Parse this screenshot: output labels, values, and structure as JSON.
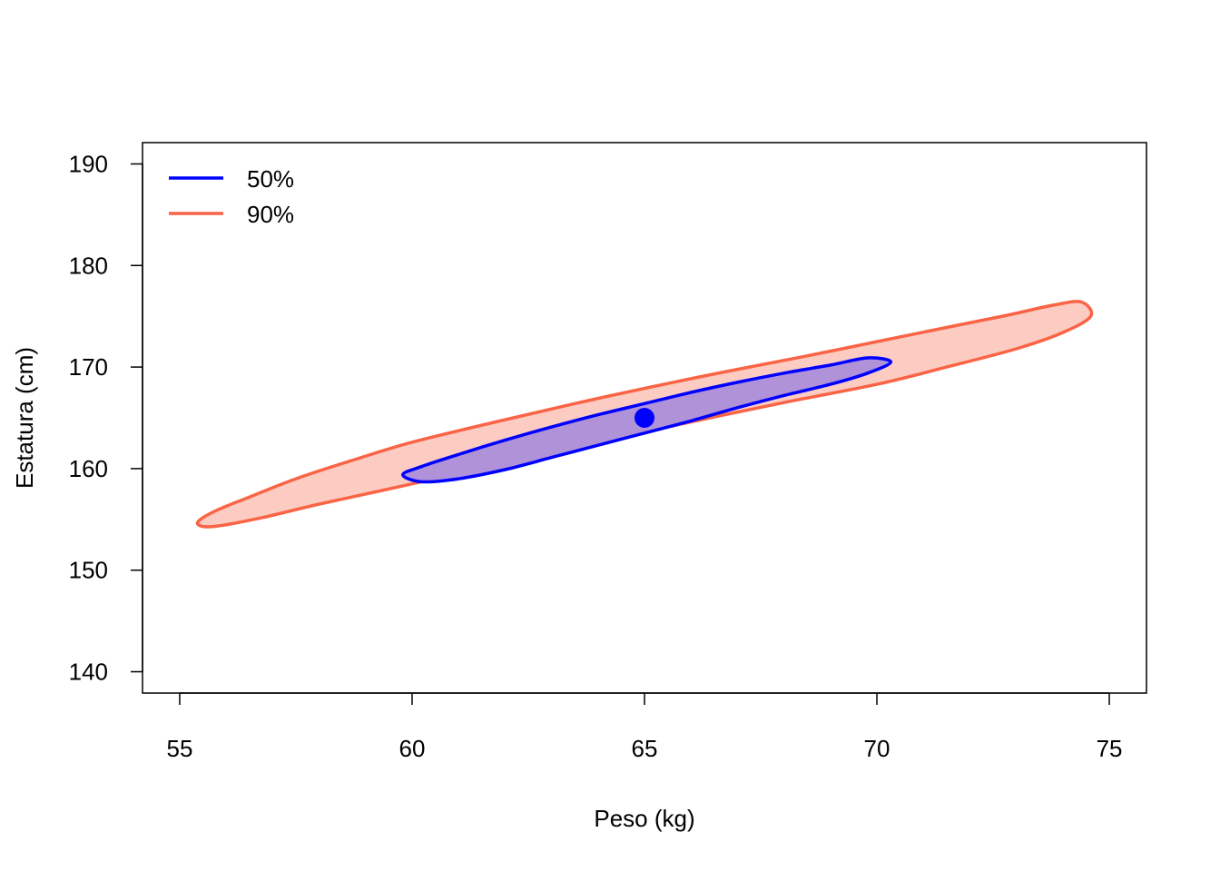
{
  "chart_data": {
    "type": "scatter",
    "title": "",
    "xlabel": "Peso (kg)",
    "ylabel": "Estatura (cm)",
    "xlim": [
      54.2,
      75.8
    ],
    "ylim": [
      137.9,
      192.1
    ],
    "xticks": [
      55,
      60,
      65,
      70,
      75
    ],
    "yticks": [
      140,
      150,
      160,
      170,
      180,
      190
    ],
    "grid": false,
    "legend_position": "top-left",
    "center_point": {
      "x": 65,
      "y": 165,
      "color": "#0000FF"
    },
    "regions": [
      {
        "name": "90%",
        "stroke": "#FA6446",
        "fill": "#FCCCC3",
        "points": [
          [
            55.4,
            154.8
          ],
          [
            55.8,
            155.9
          ],
          [
            56.5,
            157.2
          ],
          [
            57.5,
            159.0
          ],
          [
            58.7,
            160.8
          ],
          [
            60.0,
            162.6
          ],
          [
            61.8,
            164.6
          ],
          [
            63.5,
            166.4
          ],
          [
            65.0,
            167.9
          ],
          [
            66.8,
            169.6
          ],
          [
            68.5,
            171.1
          ],
          [
            70.0,
            172.5
          ],
          [
            71.5,
            173.9
          ],
          [
            72.8,
            175.1
          ],
          [
            73.8,
            176.1
          ],
          [
            74.4,
            176.4
          ],
          [
            74.6,
            175.0
          ],
          [
            74.0,
            173.4
          ],
          [
            73.0,
            171.8
          ],
          [
            71.5,
            170.0
          ],
          [
            70.0,
            168.3
          ],
          [
            68.0,
            166.5
          ],
          [
            66.0,
            164.6
          ],
          [
            64.0,
            162.6
          ],
          [
            62.0,
            160.6
          ],
          [
            60.0,
            158.5
          ],
          [
            58.0,
            156.5
          ],
          [
            56.8,
            155.2
          ],
          [
            55.9,
            154.4
          ],
          [
            55.5,
            154.3
          ]
        ]
      },
      {
        "name": "50%",
        "stroke": "#0000FF",
        "fill": "#B092D9",
        "points": [
          [
            59.8,
            159.4
          ],
          [
            60.2,
            160.2
          ],
          [
            61.0,
            161.4
          ],
          [
            62.0,
            162.8
          ],
          [
            63.0,
            164.1
          ],
          [
            64.0,
            165.3
          ],
          [
            65.0,
            166.4
          ],
          [
            66.0,
            167.5
          ],
          [
            67.0,
            168.5
          ],
          [
            68.0,
            169.4
          ],
          [
            69.0,
            170.2
          ],
          [
            69.8,
            170.9
          ],
          [
            70.3,
            170.5
          ],
          [
            69.8,
            169.4
          ],
          [
            69.0,
            168.3
          ],
          [
            68.0,
            167.2
          ],
          [
            67.0,
            166.0
          ],
          [
            66.0,
            164.7
          ],
          [
            65.0,
            163.5
          ],
          [
            64.0,
            162.3
          ],
          [
            63.0,
            161.1
          ],
          [
            62.0,
            159.9
          ],
          [
            61.0,
            159.0
          ],
          [
            60.2,
            158.7
          ]
        ]
      }
    ],
    "legend": [
      {
        "label": "50%",
        "color": "#0000FF"
      },
      {
        "label": "90%",
        "color": "#FA6446"
      }
    ]
  }
}
